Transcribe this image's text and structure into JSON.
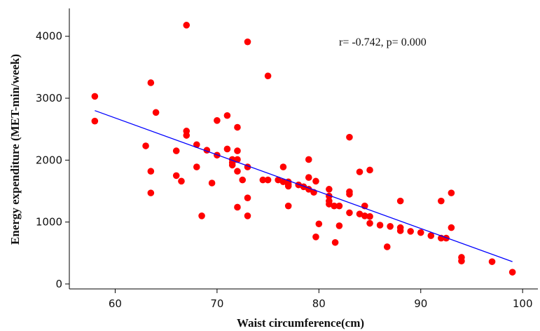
{
  "chart_data": {
    "type": "scatter",
    "xlabel": "Waist circumference(cm)",
    "ylabel": "Energy expenditure (MET-min/week)",
    "annotation": "r= -0.742, p= 0.000",
    "xlim": [
      55.5,
      101.5
    ],
    "ylim": [
      -80,
      4450
    ],
    "xticks": [
      60,
      70,
      80,
      90,
      100
    ],
    "yticks": [
      0,
      1000,
      2000,
      3000,
      4000
    ],
    "grid": false,
    "marker_color": "#ff0000",
    "line_color": "#0000ff",
    "fit_line": {
      "x": [
        58,
        99
      ],
      "y": [
        2800,
        360
      ]
    },
    "points": [
      {
        "x": 58,
        "y": 3030
      },
      {
        "x": 58,
        "y": 2630
      },
      {
        "x": 63,
        "y": 2230
      },
      {
        "x": 63.5,
        "y": 3250
      },
      {
        "x": 63.5,
        "y": 1820
      },
      {
        "x": 63.5,
        "y": 1470
      },
      {
        "x": 64,
        "y": 2770
      },
      {
        "x": 66,
        "y": 2150
      },
      {
        "x": 66,
        "y": 1750
      },
      {
        "x": 66.5,
        "y": 1660
      },
      {
        "x": 67,
        "y": 4180
      },
      {
        "x": 67,
        "y": 2470
      },
      {
        "x": 67,
        "y": 2400
      },
      {
        "x": 68,
        "y": 2250
      },
      {
        "x": 68,
        "y": 1890
      },
      {
        "x": 68.5,
        "y": 1100
      },
      {
        "x": 69,
        "y": 2160
      },
      {
        "x": 69.5,
        "y": 1630
      },
      {
        "x": 70,
        "y": 2640
      },
      {
        "x": 70,
        "y": 2080
      },
      {
        "x": 71,
        "y": 2720
      },
      {
        "x": 71,
        "y": 2180
      },
      {
        "x": 71.5,
        "y": 2010
      },
      {
        "x": 71.5,
        "y": 1960
      },
      {
        "x": 71.5,
        "y": 1920
      },
      {
        "x": 72,
        "y": 2530
      },
      {
        "x": 72,
        "y": 2150
      },
      {
        "x": 72,
        "y": 2010
      },
      {
        "x": 72,
        "y": 1820
      },
      {
        "x": 72,
        "y": 1240
      },
      {
        "x": 72.5,
        "y": 1680
      },
      {
        "x": 73,
        "y": 3910
      },
      {
        "x": 73,
        "y": 1890
      },
      {
        "x": 73,
        "y": 1390
      },
      {
        "x": 73,
        "y": 1100
      },
      {
        "x": 74.5,
        "y": 1680
      },
      {
        "x": 75,
        "y": 3360
      },
      {
        "x": 75,
        "y": 1680
      },
      {
        "x": 76,
        "y": 1680
      },
      {
        "x": 76.5,
        "y": 1890
      },
      {
        "x": 76.5,
        "y": 1650
      },
      {
        "x": 77,
        "y": 1650
      },
      {
        "x": 77,
        "y": 1610
      },
      {
        "x": 77,
        "y": 1580
      },
      {
        "x": 77,
        "y": 1260
      },
      {
        "x": 78,
        "y": 1600
      },
      {
        "x": 78.5,
        "y": 1570
      },
      {
        "x": 79,
        "y": 2010
      },
      {
        "x": 79,
        "y": 1720
      },
      {
        "x": 79,
        "y": 1530
      },
      {
        "x": 79.5,
        "y": 1480
      },
      {
        "x": 79.7,
        "y": 1660
      },
      {
        "x": 79.7,
        "y": 760
      },
      {
        "x": 80,
        "y": 970
      },
      {
        "x": 81,
        "y": 1530
      },
      {
        "x": 81,
        "y": 1420
      },
      {
        "x": 81,
        "y": 1340
      },
      {
        "x": 81,
        "y": 1290
      },
      {
        "x": 81.5,
        "y": 1260
      },
      {
        "x": 81.6,
        "y": 670
      },
      {
        "x": 82,
        "y": 1260
      },
      {
        "x": 82,
        "y": 940
      },
      {
        "x": 83,
        "y": 2370
      },
      {
        "x": 83,
        "y": 1490
      },
      {
        "x": 83,
        "y": 1450
      },
      {
        "x": 83,
        "y": 1150
      },
      {
        "x": 84,
        "y": 1810
      },
      {
        "x": 84,
        "y": 1130
      },
      {
        "x": 84.5,
        "y": 1260
      },
      {
        "x": 84.5,
        "y": 1100
      },
      {
        "x": 85,
        "y": 1840
      },
      {
        "x": 85,
        "y": 1090
      },
      {
        "x": 85,
        "y": 980
      },
      {
        "x": 86,
        "y": 950
      },
      {
        "x": 86.7,
        "y": 600
      },
      {
        "x": 87,
        "y": 930
      },
      {
        "x": 88,
        "y": 1340
      },
      {
        "x": 88,
        "y": 910
      },
      {
        "x": 88,
        "y": 860
      },
      {
        "x": 89,
        "y": 850
      },
      {
        "x": 90,
        "y": 830
      },
      {
        "x": 91,
        "y": 780
      },
      {
        "x": 92,
        "y": 1340
      },
      {
        "x": 92,
        "y": 740
      },
      {
        "x": 92.5,
        "y": 740
      },
      {
        "x": 93,
        "y": 1470
      },
      {
        "x": 93,
        "y": 910
      },
      {
        "x": 94,
        "y": 430
      },
      {
        "x": 94,
        "y": 370
      },
      {
        "x": 97,
        "y": 360
      },
      {
        "x": 99,
        "y": 190
      }
    ]
  }
}
